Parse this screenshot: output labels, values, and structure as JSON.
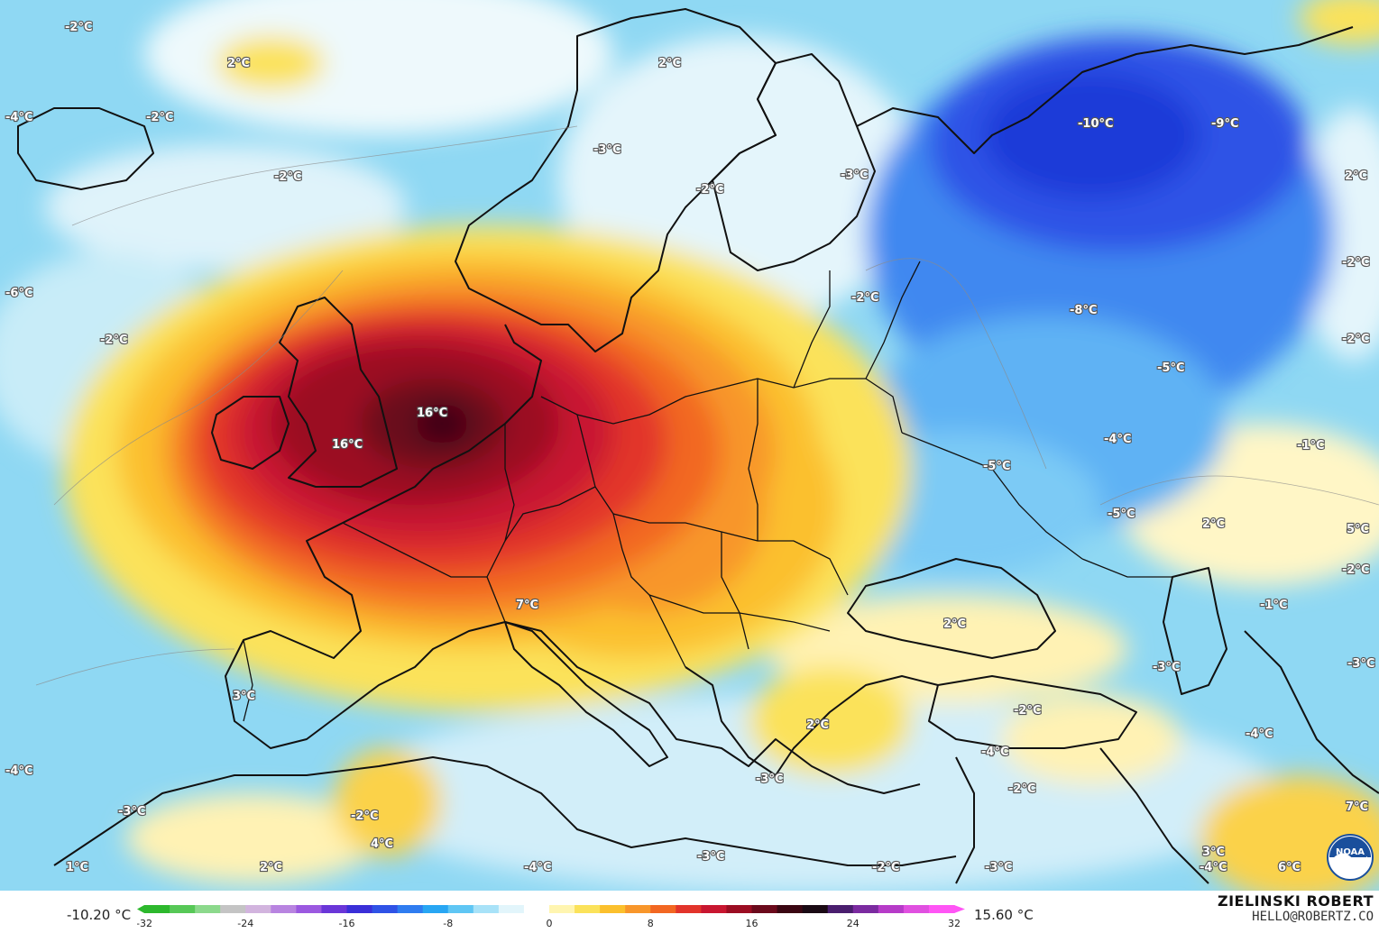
{
  "legend": {
    "min_value": "-10.20 °C",
    "max_value": "15.60 °C",
    "ticks": [
      "-32",
      "-24",
      "-16",
      "-8",
      "0",
      "8",
      "16",
      "24",
      "32"
    ],
    "colors": [
      "#2db82d",
      "#57c857",
      "#8cd98c",
      "#c4c4c4",
      "#d2b4de",
      "#b884e0",
      "#9b59e0",
      "#6a36d8",
      "#3a2fd8",
      "#2f52e6",
      "#2f7cf0",
      "#28a6f3",
      "#5fc6f4",
      "#a8e2f8",
      "#e2f5fb",
      "#ffffff",
      "#fff5b0",
      "#fbe25a",
      "#fbc02d",
      "#f8962b",
      "#f26722",
      "#e2342b",
      "#c81630",
      "#9b0d22",
      "#6b0a1c",
      "#3a0612",
      "#1a0a14",
      "#4a1e6e",
      "#7b2ba0",
      "#b63bc8",
      "#e050e0",
      "#ff55f5"
    ]
  },
  "credit": {
    "name": "ZIELINSKI ROBERT",
    "email": "HELLO@ROBERTZ.CO"
  },
  "logo": {
    "text": "NOAA",
    "icon": "noaa-logo"
  },
  "map": {
    "type": "temperature-anomaly-map",
    "region": "Europe",
    "labels": [
      {
        "text": "-2°C"
      },
      {
        "text": "2°C"
      },
      {
        "text": "-2°C"
      },
      {
        "text": "-4°C"
      },
      {
        "text": "-2°C"
      },
      {
        "text": "-6°C"
      },
      {
        "text": "-2°C"
      },
      {
        "text": "2°C"
      },
      {
        "text": "-3°C"
      },
      {
        "text": "-2°C"
      },
      {
        "text": "-3°C"
      },
      {
        "text": "-10°C"
      },
      {
        "text": "-9°C"
      },
      {
        "text": "2°C"
      },
      {
        "text": "-2°C"
      },
      {
        "text": "-2°C"
      },
      {
        "text": "-8°C"
      },
      {
        "text": "-2°C"
      },
      {
        "text": "-5°C"
      },
      {
        "text": "16°C"
      },
      {
        "text": "16°C"
      },
      {
        "text": "-4°C"
      },
      {
        "text": "-1°C"
      },
      {
        "text": "-5°C"
      },
      {
        "text": "-5°C"
      },
      {
        "text": "2°C"
      },
      {
        "text": "5°C"
      },
      {
        "text": "-2°C"
      },
      {
        "text": "7°C"
      },
      {
        "text": "2°C"
      },
      {
        "text": "-1°C"
      },
      {
        "text": "-3°C"
      },
      {
        "text": "-3°C"
      },
      {
        "text": "3°C"
      },
      {
        "text": "-2°C"
      },
      {
        "text": "-4°C"
      },
      {
        "text": "-4°C"
      },
      {
        "text": "2°C"
      },
      {
        "text": "-4°C"
      },
      {
        "text": "-3°C"
      },
      {
        "text": "-2°C"
      },
      {
        "text": "-2°C"
      },
      {
        "text": "-3°C"
      },
      {
        "text": "4°C"
      },
      {
        "text": "7°C"
      },
      {
        "text": "1°C"
      },
      {
        "text": "2°C"
      },
      {
        "text": "-4°C"
      },
      {
        "text": "-3°C"
      },
      {
        "text": "-2°C"
      },
      {
        "text": "-3°C"
      },
      {
        "text": "3°C"
      },
      {
        "text": "-4°C"
      },
      {
        "text": "6°C"
      }
    ]
  }
}
